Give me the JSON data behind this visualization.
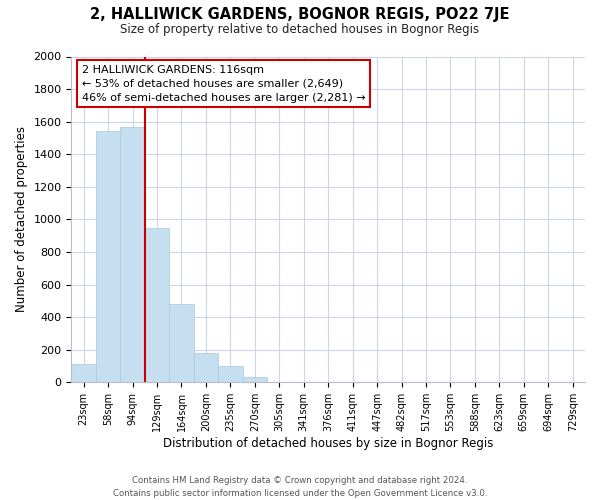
{
  "title": "2, HALLIWICK GARDENS, BOGNOR REGIS, PO22 7JE",
  "subtitle": "Size of property relative to detached houses in Bognor Regis",
  "xlabel": "Distribution of detached houses by size in Bognor Regis",
  "ylabel": "Number of detached properties",
  "bar_labels": [
    "23sqm",
    "58sqm",
    "94sqm",
    "129sqm",
    "164sqm",
    "200sqm",
    "235sqm",
    "270sqm",
    "305sqm",
    "341sqm",
    "376sqm",
    "411sqm",
    "447sqm",
    "482sqm",
    "517sqm",
    "553sqm",
    "588sqm",
    "623sqm",
    "659sqm",
    "694sqm",
    "729sqm"
  ],
  "bar_values": [
    110,
    1540,
    1570,
    950,
    480,
    180,
    100,
    35,
    0,
    0,
    0,
    0,
    0,
    0,
    0,
    0,
    0,
    0,
    0,
    0,
    0
  ],
  "bar_color": "#c5dff0",
  "bar_edge_color": "#a8c8e0",
  "vline_x_index": 2.5,
  "vline_color": "#cc0000",
  "annotation_title": "2 HALLIWICK GARDENS: 116sqm",
  "annotation_line1": "← 53% of detached houses are smaller (2,649)",
  "annotation_line2": "46% of semi-detached houses are larger (2,281) →",
  "annotation_box_color": "#ffffff",
  "annotation_box_edge": "#cc0000",
  "ylim": [
    0,
    2000
  ],
  "yticks": [
    0,
    200,
    400,
    600,
    800,
    1000,
    1200,
    1400,
    1600,
    1800,
    2000
  ],
  "footer_line1": "Contains HM Land Registry data © Crown copyright and database right 2024.",
  "footer_line2": "Contains public sector information licensed under the Open Government Licence v3.0.",
  "background_color": "#ffffff",
  "grid_color": "#ccd6e8"
}
